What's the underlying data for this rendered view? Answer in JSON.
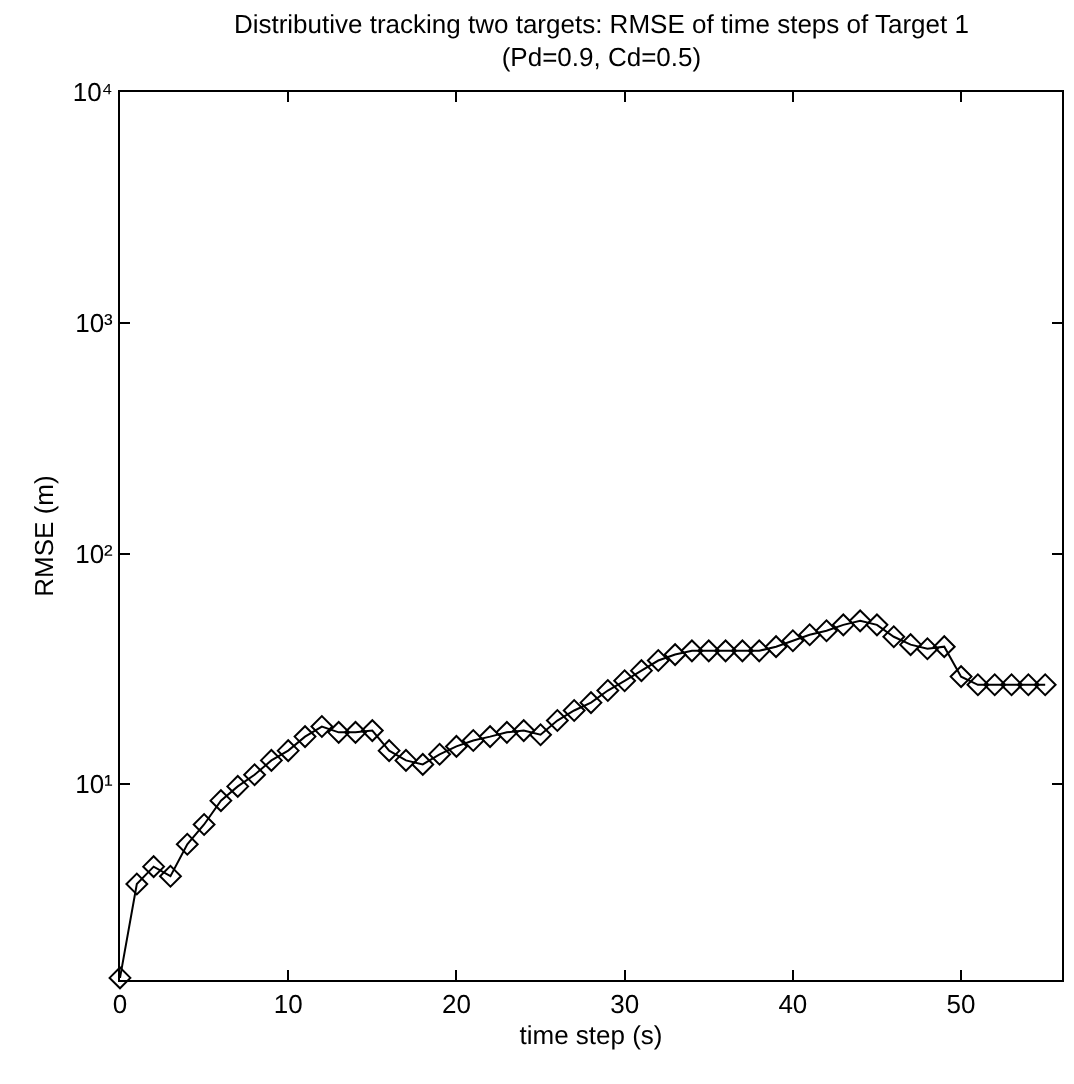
{
  "chart_data": {
    "type": "line",
    "title": "Distributive tracking two targets: RMSE of time steps of Target 1",
    "subtitle": "(Pd=0.9, Cd=0.5)",
    "xlabel": "time step (s)",
    "ylabel": "RMSE (m)",
    "x": [
      0,
      1,
      2,
      3,
      4,
      5,
      6,
      7,
      8,
      9,
      10,
      11,
      12,
      13,
      14,
      15,
      16,
      17,
      18,
      19,
      20,
      21,
      22,
      23,
      24,
      25,
      26,
      27,
      28,
      29,
      30,
      31,
      32,
      33,
      34,
      35,
      36,
      37,
      38,
      39,
      40,
      41,
      42,
      43,
      44,
      45,
      46,
      47,
      48,
      49,
      50,
      51,
      52,
      53,
      54,
      55
    ],
    "series": [
      {
        "color": "#000000",
        "values": [
          1.45,
          3.7,
          4.4,
          4.0,
          5.5,
          6.7,
          8.5,
          9.8,
          11.0,
          12.7,
          14.0,
          16.1,
          17.8,
          16.8,
          16.8,
          17.1,
          14.0,
          12.7,
          12.2,
          13.5,
          14.6,
          15.5,
          16.1,
          16.8,
          17.1,
          16.4,
          18.9,
          20.9,
          22.6,
          25.5,
          28.1,
          31.1,
          34.4,
          36.5,
          37.9,
          37.9,
          37.9,
          37.9,
          37.9,
          39.5,
          41.9,
          44.5,
          46.3,
          49.1,
          51.1,
          49.1,
          43.6,
          40.3,
          38.7,
          39.5,
          29.3,
          27.0,
          27.0,
          27.0,
          27.0,
          27.0
        ]
      }
    ],
    "xlim": [
      0,
      56
    ],
    "xticks": [
      0,
      10,
      20,
      30,
      40,
      50
    ],
    "ylim": [
      1.42,
      10000
    ],
    "yticks": [
      {
        "value": 10,
        "label": "10¹"
      },
      {
        "value": 100,
        "label": "10²"
      },
      {
        "value": 1000,
        "label": "10³"
      },
      {
        "value": 10000,
        "label": "10⁴"
      }
    ],
    "log": true,
    "marker": "diamond",
    "line_style": "solid"
  }
}
